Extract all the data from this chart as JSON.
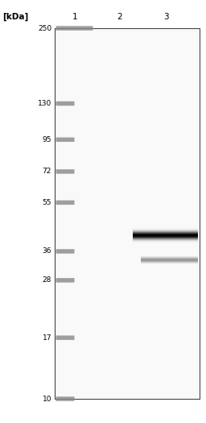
{
  "kda_label": "[kDa]",
  "lane_labels": [
    "1",
    "2",
    "3"
  ],
  "marker_kdas": [
    250,
    130,
    95,
    72,
    55,
    36,
    28,
    17,
    10
  ],
  "fig_width": 2.56,
  "fig_height": 5.25,
  "dpi": 100,
  "gel_bg": "#f9f9f9",
  "gel_border": "#444444",
  "marker_color": "#888888",
  "band_main_kda": 41.5,
  "band_sec_kda": 33.5,
  "log_min": 1.0,
  "log_max": 2.398
}
